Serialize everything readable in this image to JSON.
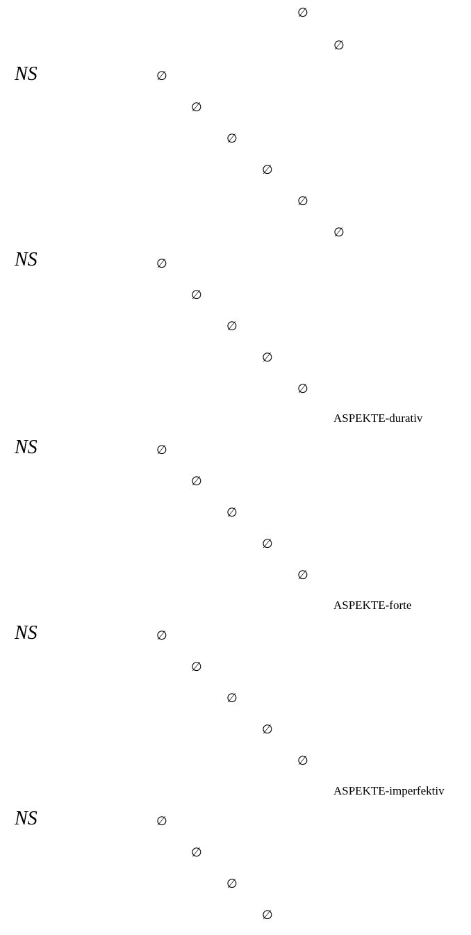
{
  "document": {
    "ns_label": "NS",
    "empty_symbol": "∅",
    "labels": {
      "durativ": "ASPEKTE-durativ",
      "forte": "ASPEKTE-forte",
      "imperfektiv": "ASPEKTE-imperfektiv"
    }
  }
}
